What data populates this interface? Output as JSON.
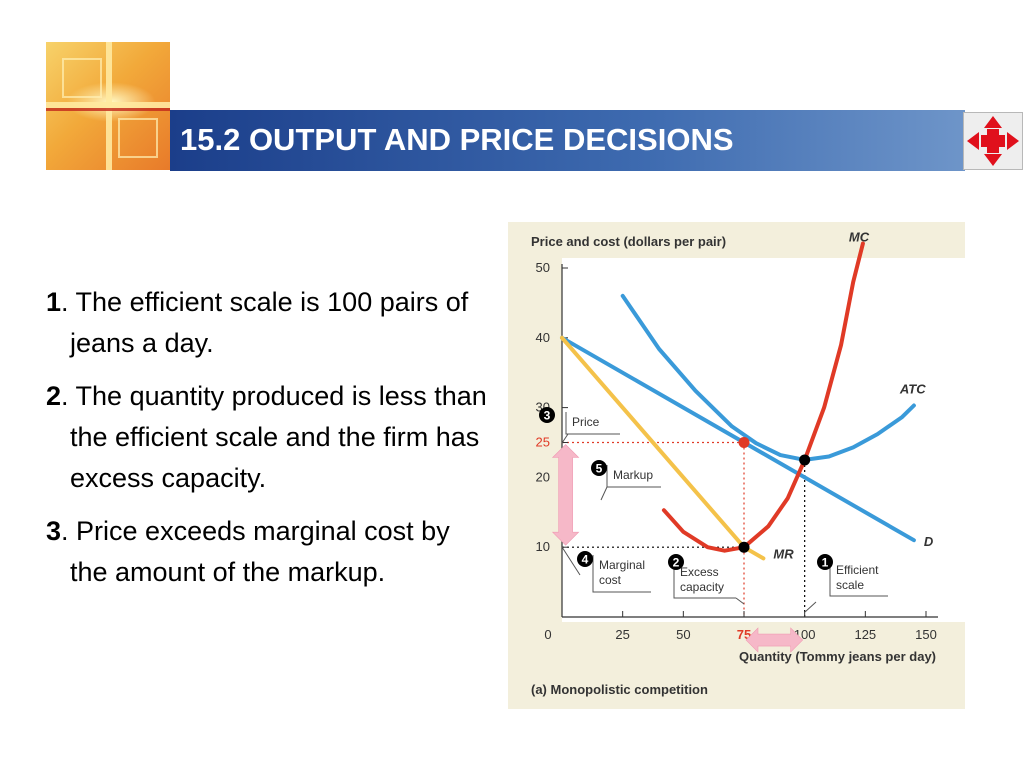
{
  "slide": {
    "title": "15.2 OUTPUT AND PRICE DECISIONS",
    "bullets": [
      {
        "num": "1",
        "text": ". The efficient scale is 100 pairs of jeans a day."
      },
      {
        "num": "2",
        "text": ". The quantity produced is less than the efficient scale and the firm has excess capacity."
      },
      {
        "num": "3",
        "text": ". Price exceeds marginal cost by the amount of the markup."
      }
    ]
  },
  "colors": {
    "title_bar": "#2a55a0",
    "demand": "#3a9ad9",
    "atc": "#3a9ad9",
    "mc": "#e03a26",
    "mr": "#f4c24a",
    "arrow": "#f6b8c8",
    "panel_bg": "#f3efdc"
  },
  "chart_data": {
    "type": "line",
    "title": "",
    "ylabel": "Price and cost (dollars per pair)",
    "xlabel": "Quantity (Tommy jeans per day)",
    "caption": "(a) Monopolistic competition",
    "xlim": [
      0,
      150
    ],
    "ylim": [
      0,
      50
    ],
    "x_ticks": [
      {
        "value": 0,
        "label": "0"
      },
      {
        "value": 25,
        "label": "25"
      },
      {
        "value": 50,
        "label": "50"
      },
      {
        "value": 75,
        "label": "75",
        "highlight": true
      },
      {
        "value": 100,
        "label": "100"
      },
      {
        "value": 125,
        "label": "125"
      },
      {
        "value": 150,
        "label": "150"
      }
    ],
    "y_ticks": [
      {
        "value": 10,
        "label": "10"
      },
      {
        "value": 20,
        "label": "20"
      },
      {
        "value": 25,
        "label": "25",
        "highlight": true
      },
      {
        "value": 30,
        "label": "30"
      },
      {
        "value": 40,
        "label": "40"
      },
      {
        "value": 50,
        "label": "50"
      }
    ],
    "series": [
      {
        "name": "D",
        "color": "#3a9ad9",
        "x": [
          0,
          75,
          145
        ],
        "y": [
          40,
          25,
          11
        ]
      },
      {
        "name": "MR",
        "color": "#f4c24a",
        "x": [
          0,
          75,
          83
        ],
        "y": [
          40,
          10,
          8.4
        ]
      },
      {
        "name": "ATC",
        "color": "#3a9ad9",
        "x": [
          25,
          40,
          55,
          70,
          80,
          90,
          100,
          110,
          120,
          130,
          140,
          145
        ],
        "y": [
          46,
          38.4,
          32.4,
          27.3,
          24.9,
          23.2,
          22.5,
          23.0,
          24.3,
          26.2,
          28.6,
          30.3
        ]
      },
      {
        "name": "MC",
        "color": "#e03a26",
        "x": [
          42,
          50,
          60,
          67,
          75,
          85,
          93,
          100,
          108,
          115,
          120,
          124
        ],
        "y": [
          15.3,
          12.2,
          10.0,
          9.5,
          10.0,
          13.0,
          17.0,
          22.5,
          30.0,
          39.0,
          48.0,
          53.5
        ]
      }
    ],
    "points": [
      {
        "x": 75,
        "y": 25,
        "color": "#e03a26"
      },
      {
        "x": 100,
        "y": 22.5,
        "color": "#000000"
      },
      {
        "x": 75,
        "y": 10,
        "color": "#000000"
      }
    ],
    "guides": [
      {
        "from": [
          0,
          25
        ],
        "to": [
          75,
          25
        ],
        "color": "#e03a26"
      },
      {
        "from": [
          75,
          25
        ],
        "to": [
          75,
          0
        ],
        "color": "#e03a26"
      },
      {
        "from": [
          0,
          10
        ],
        "to": [
          75,
          10
        ],
        "color": "#000000"
      },
      {
        "from": [
          100,
          22.5
        ],
        "to": [
          100,
          0
        ],
        "color": "#000000"
      }
    ],
    "annotations": [
      {
        "num": "3",
        "lines": [
          "Price"
        ]
      },
      {
        "num": "5",
        "lines": [
          "Markup"
        ]
      },
      {
        "num": "4",
        "lines": [
          "Marginal",
          "cost"
        ]
      },
      {
        "num": "2",
        "lines": [
          "Excess",
          "capacity"
        ]
      },
      {
        "num": "1",
        "lines": [
          "Efficient",
          "scale"
        ]
      }
    ],
    "arrows": [
      {
        "orientation": "vertical",
        "from": [
          1.5,
          25
        ],
        "to": [
          1.5,
          10
        ],
        "meaning": "markup"
      },
      {
        "orientation": "horizontal",
        "from": [
          75,
          -3.3
        ],
        "to": [
          100,
          -3.3
        ],
        "meaning": "excess capacity"
      }
    ]
  }
}
